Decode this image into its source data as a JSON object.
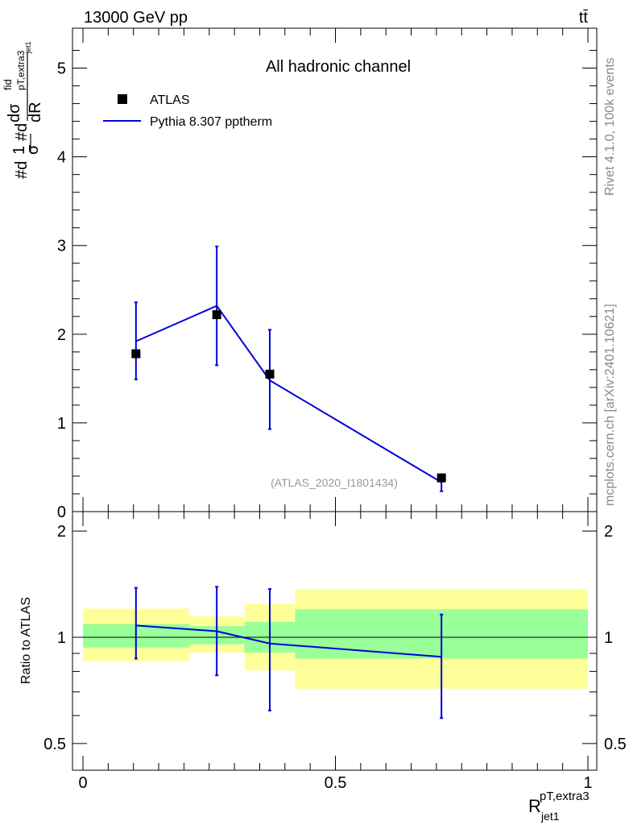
{
  "header": {
    "energy_label": "13000 GeV pp",
    "process_label": "tt̄",
    "side_label_top": "Rivet 4.1.0,  100k events",
    "side_label_bottom": "mcplots.cern.ch [arXiv:2401.10621]"
  },
  "chart_data": [
    {
      "type": "line",
      "panel": "main",
      "title": "All hadronic channel",
      "ylabel": "#d 1/σ #d dσfid / dR",
      "ylabel_parts": {
        "a": "#d",
        "b": "1",
        "c": "σ",
        "d": "#d",
        "e": "dσ",
        "f": "fid",
        "g": "pT,extra3",
        "h": "dR",
        "i": "jet1"
      },
      "watermark": "(ATLAS_2020_I1801434)",
      "xlim": [
        0,
        1
      ],
      "ylim": [
        0,
        5.45
      ],
      "yticks": [
        0,
        1,
        2,
        3,
        4,
        5
      ],
      "legend": [
        {
          "name": "ATLAS",
          "marker": "square",
          "color": "#000000"
        },
        {
          "name": "Pythia 8.307 pptherm",
          "marker": "line",
          "color": "#0000dd"
        }
      ],
      "legend_position": "top-left",
      "series": [
        {
          "name": "ATLAS",
          "x": [
            0.105,
            0.265,
            0.37,
            0.71
          ],
          "y": [
            1.78,
            2.22,
            1.55,
            0.38
          ]
        },
        {
          "name": "Pythia 8.307 pptherm",
          "x": [
            0.105,
            0.265,
            0.37,
            0.71
          ],
          "y": [
            1.92,
            2.32,
            1.48,
            0.33
          ],
          "yerr_low": [
            1.49,
            1.65,
            0.93,
            0.23
          ],
          "yerr_high": [
            2.36,
            2.99,
            2.05,
            0.42
          ]
        }
      ]
    },
    {
      "type": "line",
      "panel": "ratio",
      "ylabel": "Ratio to ATLAS",
      "xlabel": "R",
      "xlabel_sup": "pT,extra3",
      "xlabel_sub": "jet1",
      "xlim": [
        0,
        1
      ],
      "ylim": [
        0.42,
        2.27
      ],
      "yscale": "log",
      "yticks": [
        0.5,
        1,
        2
      ],
      "ytick_labels": [
        "0.5",
        "1",
        "2"
      ],
      "xticks": [
        0,
        0.5,
        1
      ],
      "xtick_labels": [
        "0",
        "0.5",
        "1"
      ],
      "bands": [
        {
          "x0": 0.0,
          "x1": 0.21,
          "yellow": [
            0.855,
            1.205
          ],
          "green": [
            0.935,
            1.09
          ]
        },
        {
          "x0": 0.21,
          "x1": 0.32,
          "yellow": [
            0.905,
            1.145
          ],
          "green": [
            0.955,
            1.075
          ]
        },
        {
          "x0": 0.32,
          "x1": 0.42,
          "yellow": [
            0.805,
            1.245
          ],
          "green": [
            0.905,
            1.105
          ]
        },
        {
          "x0": 0.42,
          "x1": 1.0,
          "yellow": [
            0.715,
            1.37
          ],
          "green": [
            0.87,
            1.2
          ]
        }
      ],
      "series": [
        {
          "name": "Pythia 8.307 pptherm",
          "x": [
            0.105,
            0.265,
            0.37,
            0.71
          ],
          "y": [
            1.08,
            1.04,
            0.96,
            0.88
          ],
          "yerr_low": [
            0.87,
            0.78,
            0.62,
            0.59
          ],
          "yerr_high": [
            1.38,
            1.39,
            1.37,
            1.16
          ]
        }
      ]
    }
  ]
}
